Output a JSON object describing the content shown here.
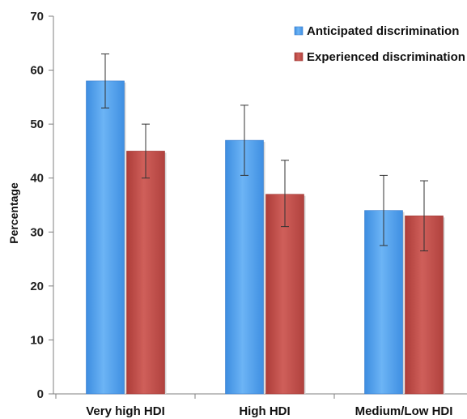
{
  "chart_data": {
    "type": "bar",
    "title": "",
    "xlabel": "",
    "ylabel": "Percentage",
    "ylim": [
      0,
      70
    ],
    "yticks": [
      0,
      10,
      20,
      30,
      40,
      50,
      60,
      70
    ],
    "grid": false,
    "legend_position": "top-right",
    "categories": [
      "Very high HDI",
      "High HDI",
      "Medium/Low HDI"
    ],
    "series": [
      {
        "name": "Anticipated discrimination",
        "color": "#4f9ee8",
        "values": [
          58,
          47,
          34
        ],
        "error_low": [
          53,
          40.5,
          27.5
        ],
        "error_high": [
          63,
          53.5,
          40.5
        ]
      },
      {
        "name": "Experienced discrimination",
        "color": "#bf4a46",
        "values": [
          45,
          37,
          33
        ],
        "error_low": [
          40,
          31,
          26.5
        ],
        "error_high": [
          50,
          43.3,
          39.5
        ]
      }
    ]
  }
}
